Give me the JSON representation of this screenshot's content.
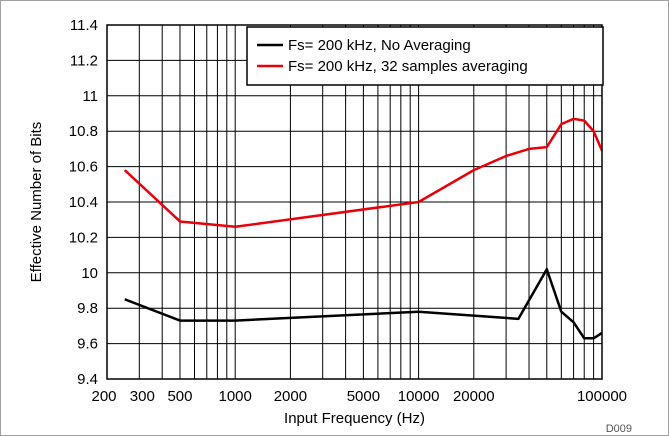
{
  "chart_data": {
    "type": "line",
    "xscale": "log",
    "xlim": [
      200,
      100000
    ],
    "ylim": [
      9.4,
      11.4
    ],
    "xlabel": "Input Frequency (Hz)",
    "ylabel": "Effective Number of Bits",
    "xticks": [
      200,
      300,
      500,
      1000,
      2000,
      5000,
      10000,
      20000,
      100000
    ],
    "xtick_labels": [
      "200",
      "300",
      "500",
      "1000",
      "2000",
      "5000",
      "10000",
      "20000",
      "100000"
    ],
    "yticks": [
      9.4,
      9.6,
      9.8,
      10,
      10.2,
      10.4,
      10.6,
      10.8,
      11,
      11.2,
      11.4
    ],
    "ytick_labels": [
      "9.4",
      "9.6",
      "9.8",
      "10",
      "10.2",
      "10.4",
      "10.6",
      "10.8",
      "11",
      "11.2",
      "11.4"
    ],
    "grid": true,
    "legend_position": "top-right",
    "series": [
      {
        "name": "Fs= 200 kHz, No Averaging",
        "color": "#000000",
        "x": [
          250,
          500,
          1000,
          10000,
          35000,
          50000,
          60000,
          70000,
          80000,
          90000,
          100000
        ],
        "y": [
          9.85,
          9.73,
          9.73,
          9.78,
          9.74,
          10.02,
          9.78,
          9.72,
          9.63,
          9.63,
          9.66
        ]
      },
      {
        "name": "Fs= 200 kHz, 32 samples averaging",
        "color": "#e8000b",
        "x": [
          250,
          500,
          1000,
          10000,
          20000,
          30000,
          40000,
          50000,
          60000,
          70000,
          80000,
          90000,
          100000
        ],
        "y": [
          10.58,
          10.29,
          10.26,
          10.4,
          10.58,
          10.66,
          10.7,
          10.71,
          10.84,
          10.87,
          10.86,
          10.8,
          10.69
        ]
      }
    ],
    "code": "D009"
  }
}
